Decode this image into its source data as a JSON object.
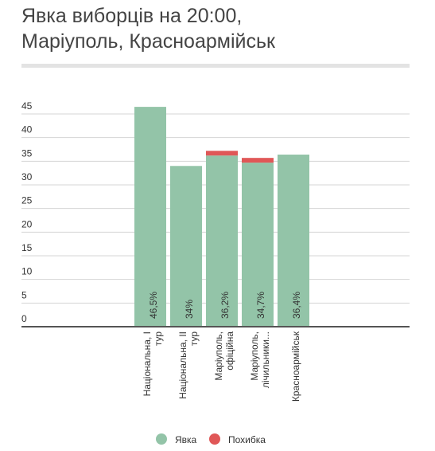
{
  "chart_data": {
    "type": "stacked_bar",
    "title": "Явка виборців на 20:00, Маріуполь, Красноармійськ",
    "categories": [
      [
        "Національна, I",
        "тур"
      ],
      [
        "Національна, II",
        "тур"
      ],
      [
        "Маріуполь,",
        "офіційна"
      ],
      [
        "Маріуполь,",
        "лічильники..."
      ],
      [
        "Красноармійськ"
      ]
    ],
    "series": [
      {
        "name": "Явка",
        "color": "#93c4a8",
        "values": [
          46.5,
          34,
          36.2,
          34.7,
          36.4
        ],
        "value_labels": [
          "46,5%",
          "34%",
          "36,2%",
          "34,7%",
          "36,4%"
        ]
      },
      {
        "name": "Похибка",
        "color": "#e05757",
        "values": [
          null,
          null,
          1,
          1,
          null
        ]
      }
    ],
    "ylim": [
      0,
      45
    ],
    "yticks": [
      0,
      5,
      10,
      15,
      20,
      25,
      30,
      35,
      40,
      45
    ],
    "grid": true,
    "legend": "bottom"
  }
}
